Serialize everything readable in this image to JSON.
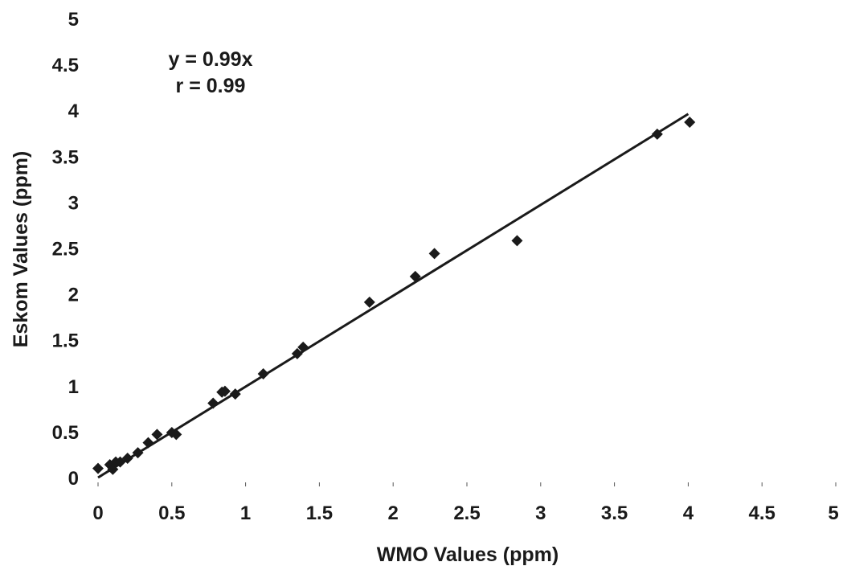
{
  "chart_data": {
    "type": "scatter",
    "xlabel": "WMO Values (ppm)",
    "ylabel": "Eskom Values (ppm)",
    "xlim": [
      0,
      5
    ],
    "ylim": [
      0,
      5
    ],
    "x_ticks": [
      "0",
      "0.5",
      "1",
      "1.5",
      "2",
      "2.5",
      "3",
      "3.5",
      "4",
      "4.5",
      "5"
    ],
    "y_ticks": [
      "0",
      "0.5",
      "1",
      "1.5",
      "2",
      "2.5",
      "3",
      "3.5",
      "4",
      "4.5",
      "5"
    ],
    "grid": false,
    "legend": "none",
    "annotations": [
      "y = 0.99x",
      "r = 0.99"
    ],
    "marker_color": "#1a1a1a",
    "line_color": "#1a1a1a",
    "series": [
      {
        "marker": "diamond",
        "points": [
          [
            0.0,
            0.1
          ],
          [
            0.08,
            0.14
          ],
          [
            0.1,
            0.09
          ],
          [
            0.12,
            0.17
          ],
          [
            0.15,
            0.17
          ],
          [
            0.2,
            0.21
          ],
          [
            0.27,
            0.27
          ],
          [
            0.34,
            0.38
          ],
          [
            0.4,
            0.47
          ],
          [
            0.5,
            0.49
          ],
          [
            0.53,
            0.47
          ],
          [
            0.78,
            0.81
          ],
          [
            0.84,
            0.93
          ],
          [
            0.86,
            0.94
          ],
          [
            0.93,
            0.91
          ],
          [
            1.12,
            1.13
          ],
          [
            1.35,
            1.35
          ],
          [
            1.39,
            1.42
          ],
          [
            1.84,
            1.91
          ],
          [
            2.15,
            2.19
          ],
          [
            2.28,
            2.44
          ],
          [
            2.84,
            2.58
          ],
          [
            3.79,
            3.74
          ],
          [
            4.01,
            3.87
          ]
        ]
      }
    ],
    "trendline": {
      "slope": 0.99,
      "x_range": [
        0,
        4.0
      ]
    }
  }
}
